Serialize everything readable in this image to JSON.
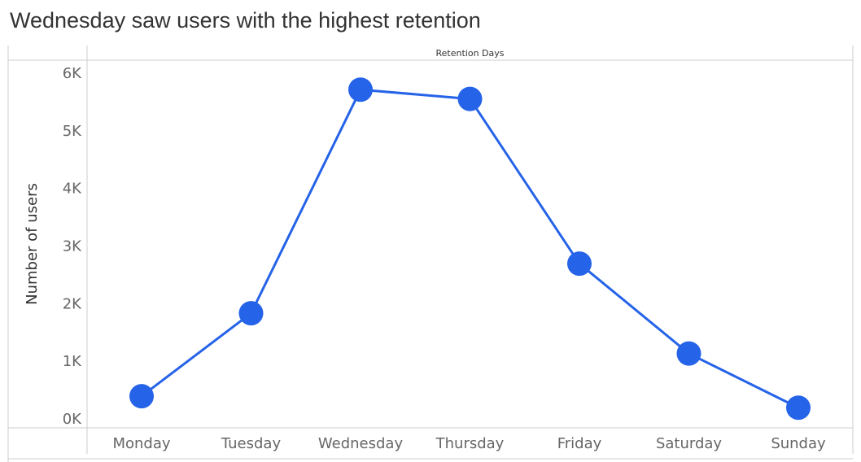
{
  "title": "Wednesday saw users with the highest retention",
  "chart_data": {
    "type": "line",
    "header": "Retention Days",
    "xlabel": "",
    "ylabel": "Number of users",
    "categories": [
      "Monday",
      "Tuesday",
      "Wednesday",
      "Thursday",
      "Friday",
      "Saturday",
      "Sunday"
    ],
    "series": [
      {
        "values": [
          380,
          1820,
          5700,
          5540,
          2680,
          1120,
          180
        ]
      }
    ],
    "yticks": [
      0,
      1000,
      2000,
      3000,
      4000,
      5000,
      6000
    ],
    "ytick_labels": [
      "0K",
      "1K",
      "2K",
      "3K",
      "4K",
      "5K",
      "6K"
    ],
    "ylim": [
      0,
      6000
    ],
    "grid": false,
    "legend": "none",
    "colors": {
      "series": "#2563e8",
      "axis": "#cccccc",
      "text": "#666666"
    }
  }
}
